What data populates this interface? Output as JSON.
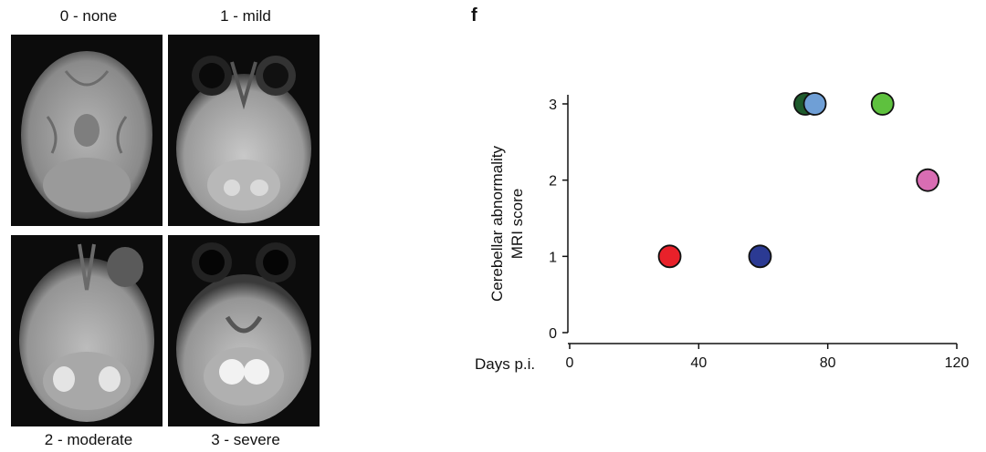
{
  "mri_panels": [
    {
      "label": "0 - none",
      "score": 0
    },
    {
      "label": "1 - mild",
      "score": 1
    },
    {
      "label": "2 - moderate",
      "score": 2
    },
    {
      "label": "3 - severe",
      "score": 3
    }
  ],
  "panel_letter": "f",
  "chart_data": {
    "type": "scatter",
    "ylabel_line1": "Cerebellar abnormality",
    "ylabel_line2": "MRI score",
    "xlabel": "Days p.i.",
    "xlim": [
      0,
      120
    ],
    "ylim": [
      0,
      3
    ],
    "xticks": [
      0,
      40,
      80,
      120
    ],
    "yticks": [
      0,
      1,
      2,
      3
    ],
    "points": [
      {
        "x": 31,
        "y": 1,
        "color": "#e8212a"
      },
      {
        "x": 59,
        "y": 1,
        "color": "#2b3a93"
      },
      {
        "x": 73,
        "y": 3,
        "color": "#1e5a2c"
      },
      {
        "x": 76,
        "y": 3,
        "color": "#6f9fd6"
      },
      {
        "x": 97,
        "y": 3,
        "color": "#5ec13e"
      },
      {
        "x": 111,
        "y": 2,
        "color": "#d96db3"
      }
    ]
  }
}
